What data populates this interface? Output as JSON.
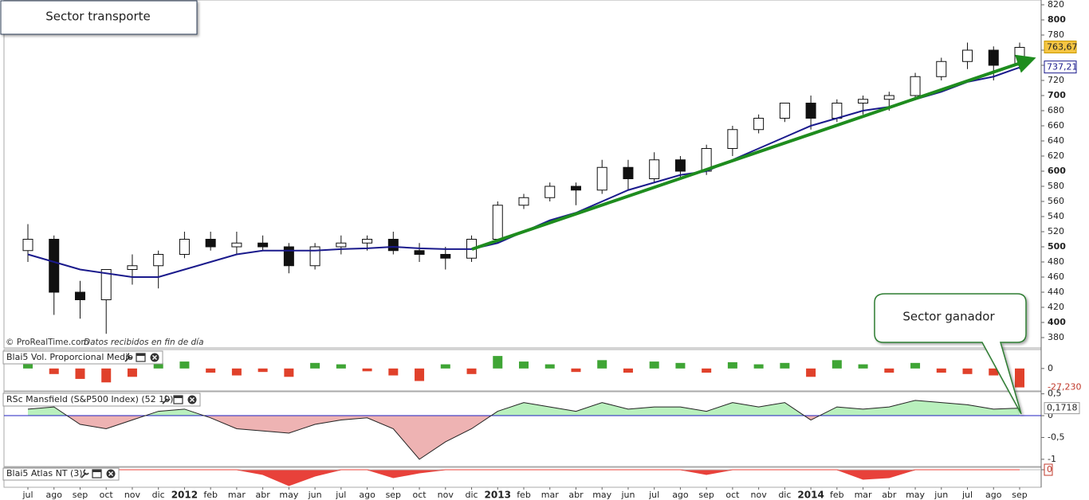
{
  "chart_data": [
    {
      "type": "candlestick",
      "title": "Sector transporte",
      "categories": [
        "jul",
        "ago",
        "sep",
        "oct",
        "nov",
        "dic",
        "2012",
        "feb",
        "mar",
        "abr",
        "may",
        "jun",
        "jul",
        "ago",
        "sep",
        "oct",
        "nov",
        "dic",
        "2013",
        "feb",
        "mar",
        "abr",
        "may",
        "jun",
        "jul",
        "ago",
        "sep",
        "oct",
        "nov",
        "dic",
        "2014",
        "feb",
        "mar",
        "abr",
        "may",
        "jun",
        "jul",
        "ago",
        "sep"
      ],
      "open": [
        495,
        510,
        440,
        430,
        470,
        475,
        490,
        510,
        500,
        505,
        500,
        475,
        500,
        505,
        510,
        495,
        490,
        485,
        510,
        555,
        565,
        580,
        575,
        605,
        590,
        615,
        600,
        630,
        655,
        670,
        690,
        670,
        690,
        695,
        700,
        725,
        745,
        760,
        740
      ],
      "high": [
        530,
        515,
        455,
        470,
        490,
        495,
        520,
        520,
        520,
        515,
        505,
        505,
        515,
        515,
        520,
        505,
        500,
        515,
        560,
        570,
        585,
        585,
        615,
        615,
        625,
        620,
        635,
        660,
        675,
        690,
        700,
        695,
        700,
        705,
        730,
        750,
        770,
        765,
        770
      ],
      "low": [
        480,
        410,
        405,
        385,
        450,
        445,
        485,
        495,
        490,
        495,
        465,
        470,
        490,
        495,
        490,
        480,
        470,
        480,
        505,
        550,
        560,
        555,
        570,
        575,
        585,
        590,
        595,
        620,
        650,
        665,
        655,
        665,
        675,
        680,
        695,
        720,
        735,
        720,
        735
      ],
      "close": [
        510,
        440,
        430,
        470,
        475,
        490,
        510,
        500,
        505,
        500,
        475,
        500,
        505,
        510,
        495,
        490,
        485,
        510,
        555,
        565,
        580,
        575,
        605,
        590,
        615,
        600,
        630,
        655,
        670,
        690,
        670,
        690,
        695,
        700,
        725,
        745,
        760,
        740,
        763.67
      ],
      "ma": [
        490,
        480,
        470,
        465,
        460,
        460,
        470,
        480,
        490,
        495,
        495,
        495,
        497,
        498,
        500,
        498,
        497,
        497,
        505,
        520,
        535,
        545,
        560,
        575,
        585,
        595,
        600,
        615,
        630,
        645,
        660,
        670,
        680,
        685,
        695,
        705,
        718,
        725,
        737.21
      ],
      "ma_color": "#1a1a8c",
      "up_color": "#ffffff",
      "down_color": "#111111",
      "trend_color": "#1e8c1e",
      "ylim": [
        380,
        820
      ],
      "yticks": [
        380,
        400,
        420,
        440,
        460,
        480,
        500,
        520,
        540,
        560,
        580,
        600,
        620,
        640,
        660,
        680,
        700,
        720,
        740,
        760,
        780,
        800,
        820
      ],
      "last_price": {
        "value": 763.67,
        "label": "763,67"
      },
      "last_ma": {
        "value": 737.21,
        "label": "737,21"
      },
      "annotation": "Sector ganador",
      "source": "© ProRealTime.com",
      "source_note": "Datos recibidos en fin de día"
    },
    {
      "type": "bar",
      "title": "Blai5 Vol. Proporcional Medio",
      "values": [
        12,
        -8,
        -15,
        -20,
        -12,
        8,
        10,
        -6,
        -10,
        -5,
        -12,
        8,
        6,
        -4,
        -10,
        -18,
        6,
        -8,
        18,
        10,
        6,
        -5,
        12,
        -6,
        10,
        8,
        -6,
        9,
        6,
        8,
        -12,
        12,
        6,
        -6,
        8,
        -6,
        -8,
        -10,
        -27.23
      ],
      "positive_color": "#3fa535",
      "negative_color": "#e0412b",
      "ylim": [
        -30,
        25
      ],
      "yticks": [
        0
      ],
      "last_value": {
        "value": -27.23,
        "label": "-27,230"
      }
    },
    {
      "type": "area",
      "title": "RSc Mansfield (S&P500 Index) (52 10)",
      "values": [
        0.15,
        0.2,
        -0.2,
        -0.3,
        -0.1,
        0.1,
        0.15,
        -0.05,
        -0.3,
        -0.35,
        -0.4,
        -0.2,
        -0.1,
        -0.05,
        -0.3,
        -1.0,
        -0.6,
        -0.3,
        0.1,
        0.3,
        0.2,
        0.1,
        0.3,
        0.15,
        0.2,
        0.2,
        0.1,
        0.3,
        0.2,
        0.3,
        -0.1,
        0.2,
        0.15,
        0.2,
        0.35,
        0.3,
        0.25,
        0.15,
        0.1718
      ],
      "positive_color": "#b9f0bd",
      "negative_color": "#eeb3b3",
      "line_color": "#222222",
      "zero_color": "#2020c0",
      "ylim": [
        -1.13,
        0.53
      ],
      "yticks": [
        {
          "value": 0.5,
          "label": "0,5"
        },
        0,
        {
          "value": -0.5,
          "label": "-0,5"
        },
        -1
      ],
      "last_value": {
        "value": 0.1718,
        "label": "0,1718"
      }
    },
    {
      "type": "area",
      "title": "Blai5 Atlas NT (3)",
      "values": [
        0,
        0,
        0,
        0,
        0,
        0,
        0,
        0,
        0,
        -0.3,
        -1,
        -0.4,
        0,
        0,
        -0.5,
        -0.2,
        0,
        0,
        0,
        0,
        0,
        0,
        0,
        0,
        0,
        0,
        -0.3,
        0,
        0,
        0,
        0,
        0,
        -0.6,
        -0.5,
        0,
        0,
        0,
        0,
        0
      ],
      "positive_color": "#b9f0bd",
      "negative_color": "#e8413a",
      "line_color": "#e8413a",
      "zero_color": "#bbbbbb",
      "ylim": [
        -1,
        0.1
      ],
      "yticks": [
        0
      ],
      "last_value": {
        "value": 0,
        "label": "0"
      }
    }
  ]
}
